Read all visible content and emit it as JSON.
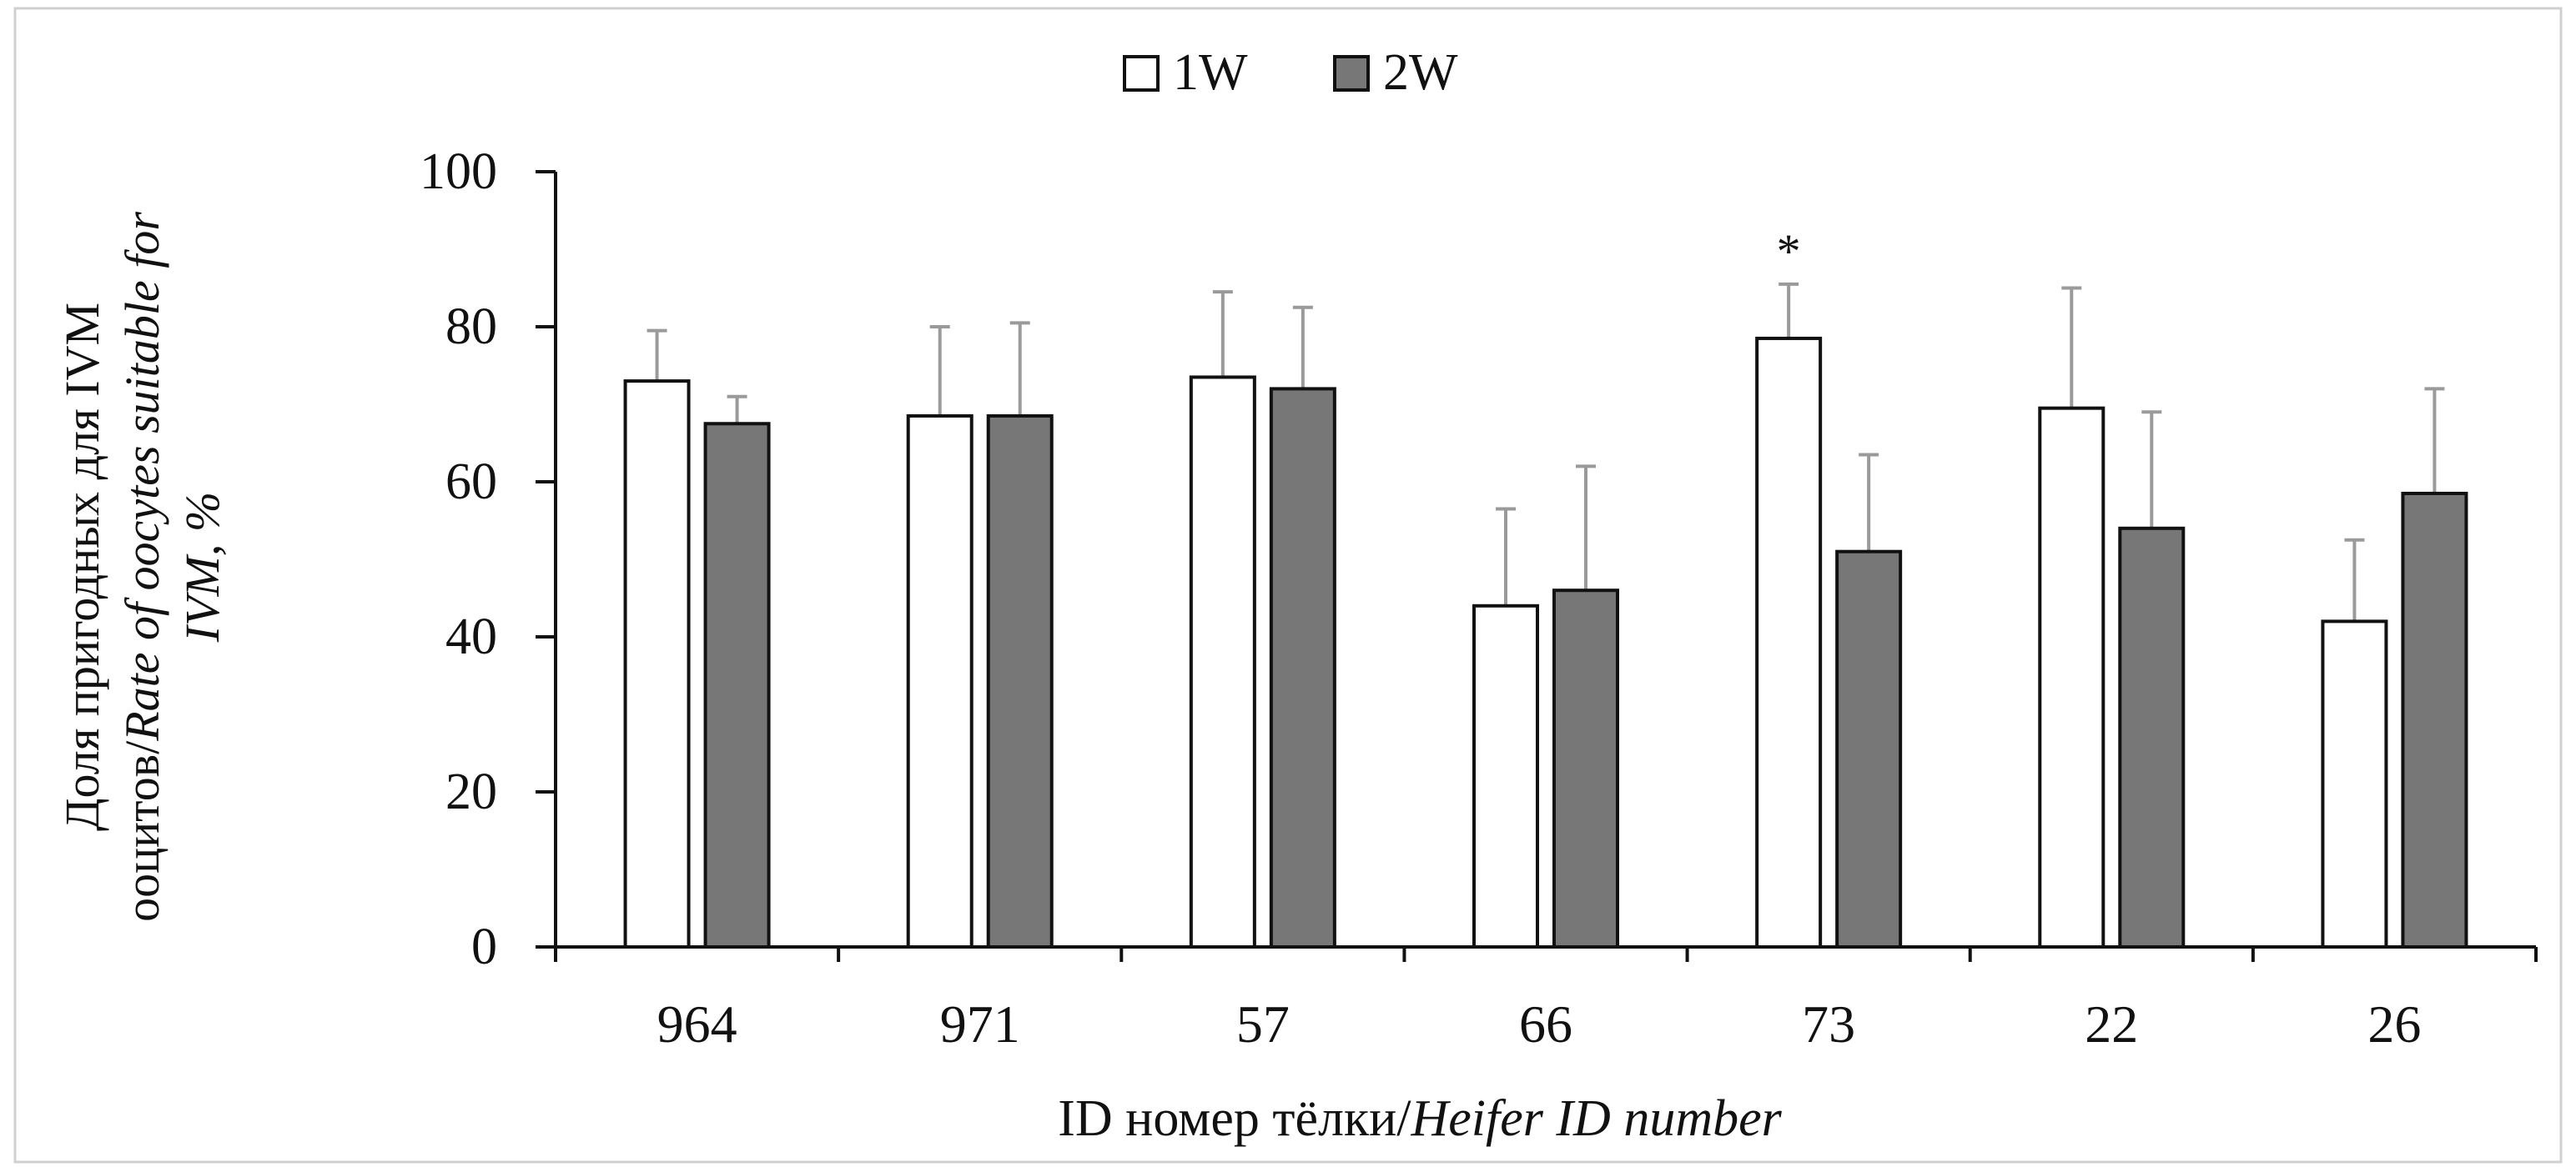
{
  "chart_data": {
    "type": "bar",
    "title": "",
    "xlabel_plain": "ID номер тёлки/",
    "xlabel_italic": "Heifer ID number",
    "ylabel_line1": "Доля пригодных для IVM",
    "ylabel_line2_plain": "ооцитов/",
    "ylabel_line2_italic": "Rate of oocytes suitable for",
    "ylabel_line3": "IVM, %",
    "ylim": [
      0,
      100
    ],
    "yticks": [
      0,
      20,
      40,
      60,
      80,
      100
    ],
    "ytick_labels": [
      "0",
      "20",
      "40",
      "60",
      "80",
      "100"
    ],
    "categories": [
      "964",
      "971",
      "57",
      "66",
      "73",
      "22",
      "26"
    ],
    "series": [
      {
        "name": "1W",
        "color": "#ffffff",
        "values": [
          73,
          68.5,
          73.5,
          44,
          78.5,
          69.5,
          42
        ],
        "errors": [
          6.5,
          11.5,
          11,
          12.5,
          7,
          15.5,
          10.5
        ]
      },
      {
        "name": "2W",
        "color": "#777777",
        "values": [
          67.5,
          68.5,
          72,
          46,
          51,
          54,
          58.5
        ],
        "errors": [
          3.5,
          12,
          10.5,
          16,
          12.5,
          15,
          13.5
        ]
      }
    ],
    "annotations": [
      {
        "text": "*",
        "category": "73",
        "series": "1W"
      }
    ],
    "legend_position": "top-center",
    "grid": false
  }
}
